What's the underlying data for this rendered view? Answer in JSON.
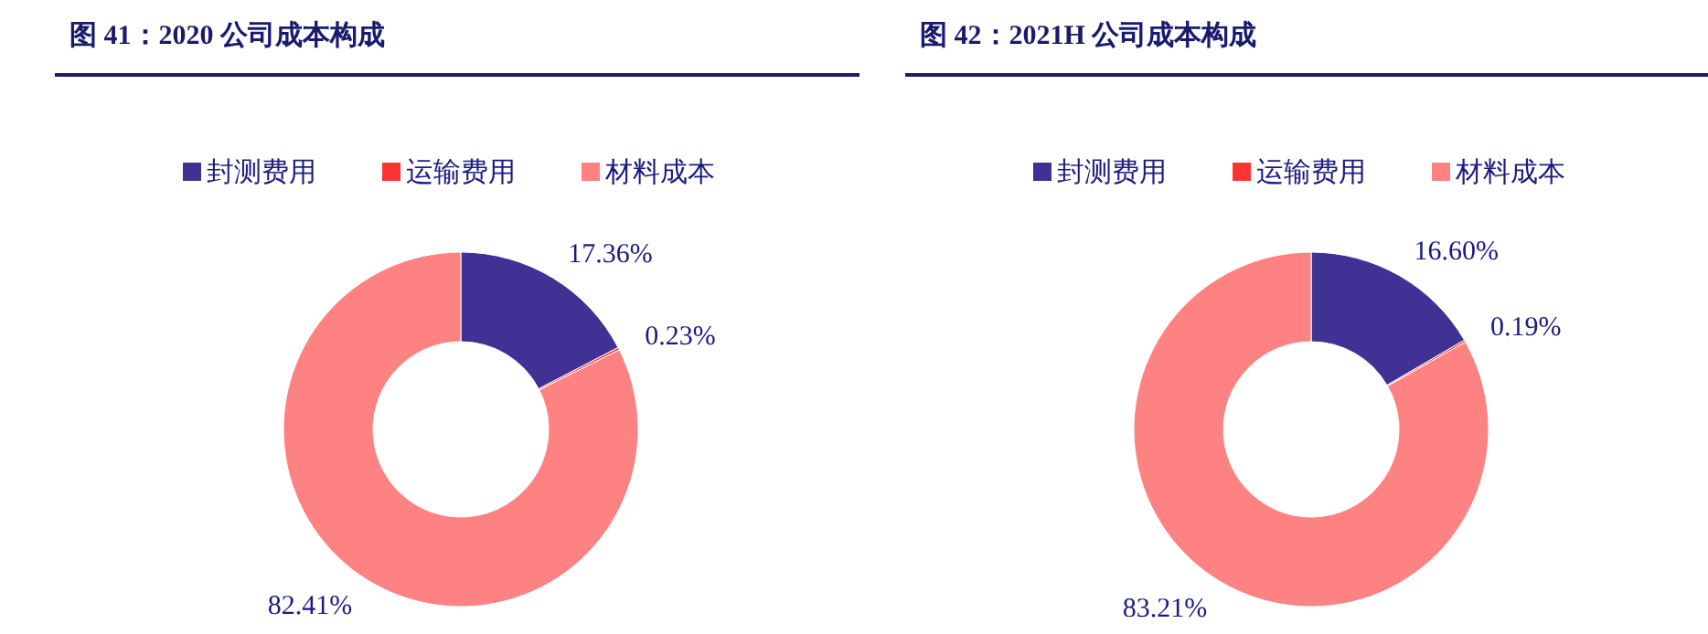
{
  "chart_data": [
    {
      "type": "donut",
      "title": "图 41：2020 公司成本构成",
      "categories": [
        "封测费用",
        "运输费用",
        "材料成本"
      ],
      "values": [
        17.36,
        0.23,
        82.41
      ],
      "colors": [
        "#403294",
        "#ff3333",
        "#ff8282"
      ],
      "value_labels": [
        "17.36%",
        "0.23%",
        "82.41%"
      ],
      "legend": "top"
    },
    {
      "type": "donut",
      "title": "图 42：2021H 公司成本构成",
      "categories": [
        "封测费用",
        "运输费用",
        "材料成本"
      ],
      "values": [
        16.6,
        0.19,
        83.21
      ],
      "colors": [
        "#403294",
        "#ff3333",
        "#ff8282"
      ],
      "value_labels": [
        "16.60%",
        "0.19%",
        "83.21%"
      ],
      "legend": "top"
    }
  ]
}
